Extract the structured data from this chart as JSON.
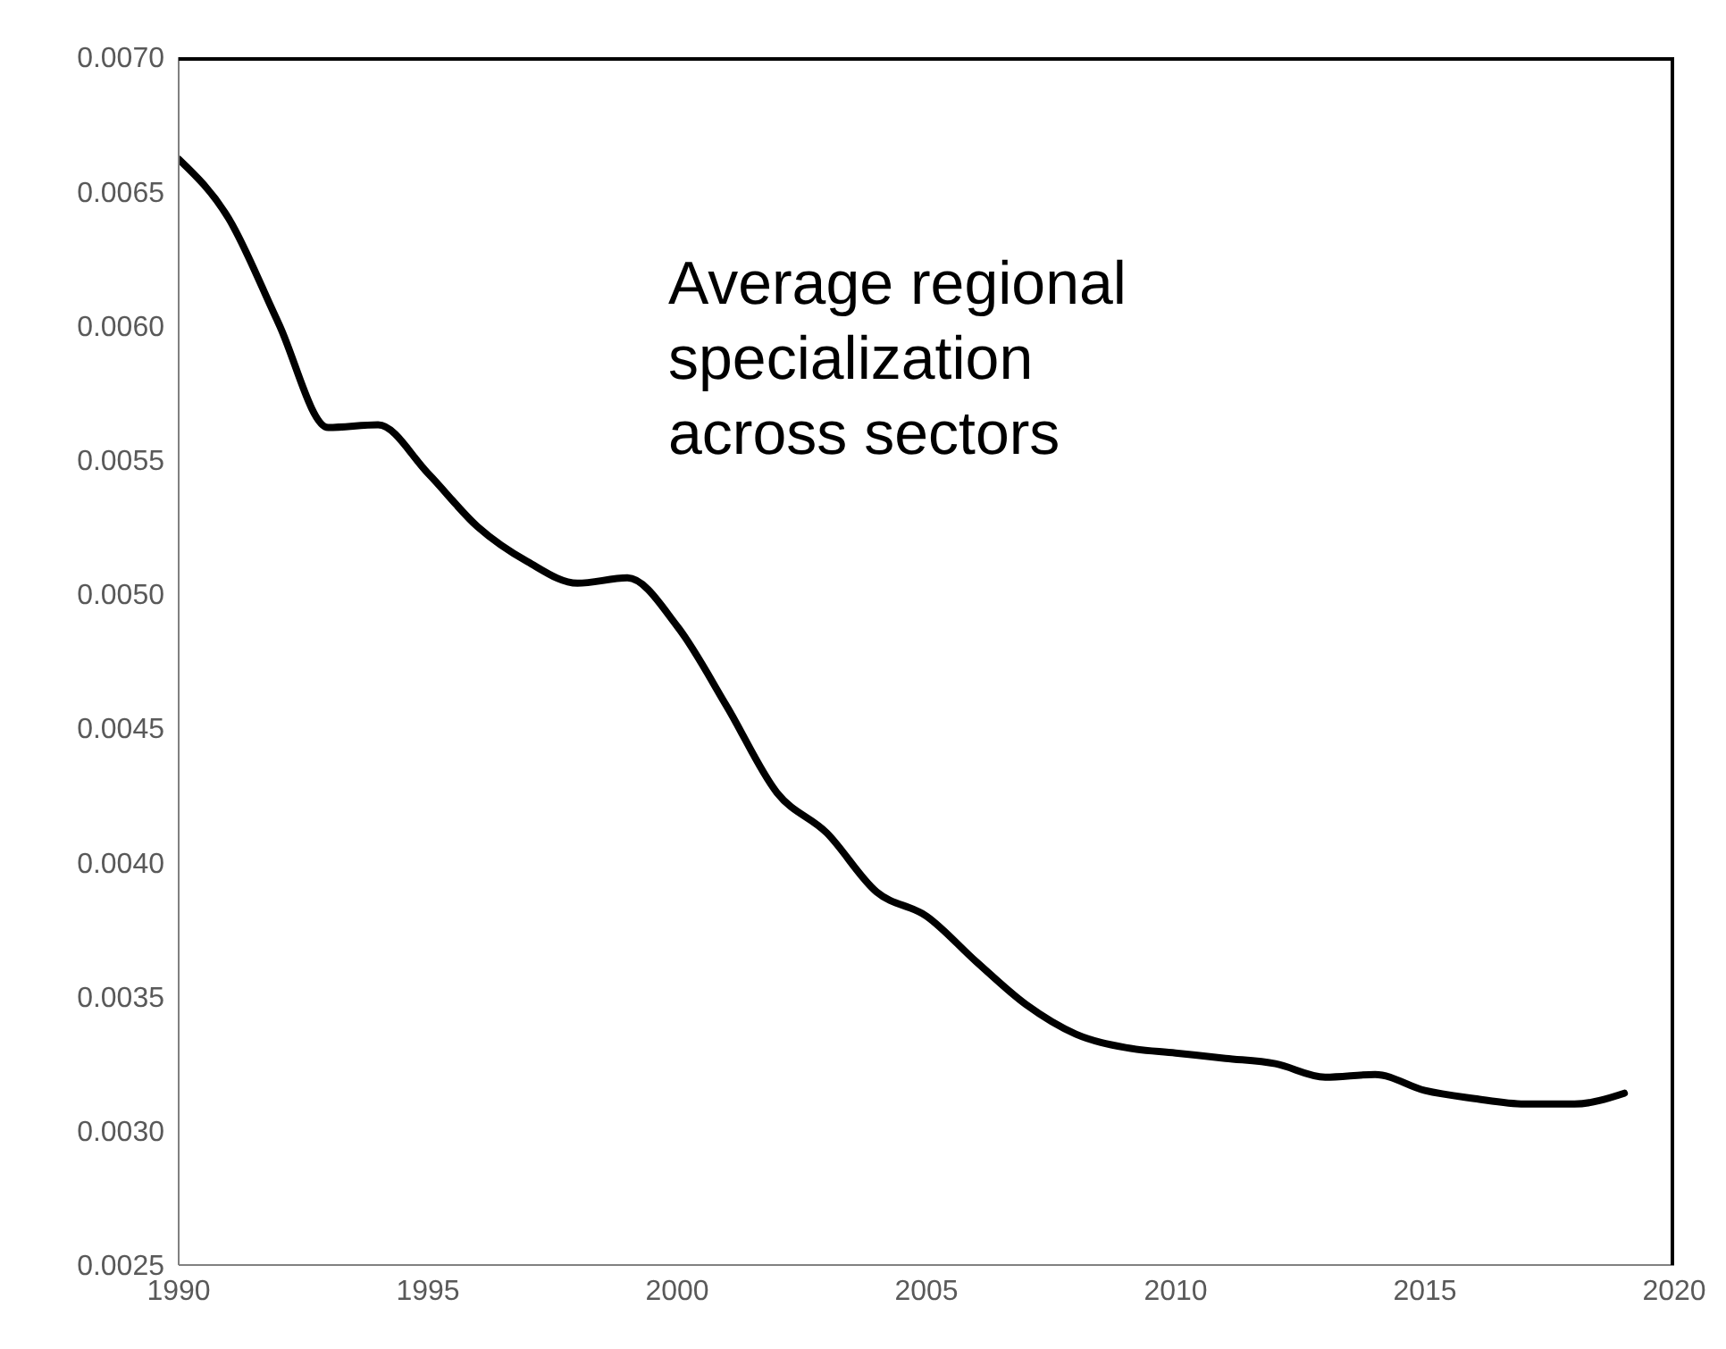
{
  "chart_data": {
    "type": "line",
    "annotations": [
      "Average regional specialization across sectors"
    ],
    "x": [
      1990,
      1991,
      1992,
      1993,
      1994,
      1995,
      1996,
      1997,
      1998,
      1999,
      2000,
      2001,
      2002,
      2003,
      2004,
      2005,
      2006,
      2007,
      2008,
      2009,
      2010,
      2011,
      2012,
      2013,
      2014,
      2015,
      2016,
      2017,
      2018,
      2019
    ],
    "series": [
      {
        "color": "#000000",
        "values": [
          0.00662,
          0.0064,
          0.00601,
          0.00562,
          0.00563,
          0.00545,
          0.00525,
          0.00512,
          0.00504,
          0.00506,
          0.00488,
          0.00458,
          0.00426,
          0.00411,
          0.00389,
          0.0038,
          0.00363,
          0.00347,
          0.00336,
          0.00331,
          0.00329,
          0.00327,
          0.00325,
          0.0032,
          0.00321,
          0.00315,
          0.00312,
          0.0031,
          0.0031,
          0.00314
        ]
      }
    ],
    "xlim": [
      1990,
      2020
    ],
    "xticks": [
      1990,
      1995,
      2000,
      2005,
      2010,
      2015,
      2020
    ],
    "ylim": [
      0.0025,
      0.007
    ],
    "yticks": [
      {
        "value": 0.0025,
        "label": "0.0025"
      },
      {
        "value": 0.003,
        "label": "0.0030"
      },
      {
        "value": 0.0035,
        "label": "0.0035"
      },
      {
        "value": 0.004,
        "label": "0.0040"
      },
      {
        "value": 0.0045,
        "label": "0.0045"
      },
      {
        "value": 0.005,
        "label": "0.0050"
      },
      {
        "value": 0.0055,
        "label": "0.0055"
      },
      {
        "value": 0.006,
        "label": "0.0060"
      },
      {
        "value": 0.0065,
        "label": "0.0065"
      },
      {
        "value": 0.007,
        "label": "0.0070"
      }
    ],
    "grid": false,
    "legend": false,
    "marker": "none",
    "line_style": "solid"
  }
}
